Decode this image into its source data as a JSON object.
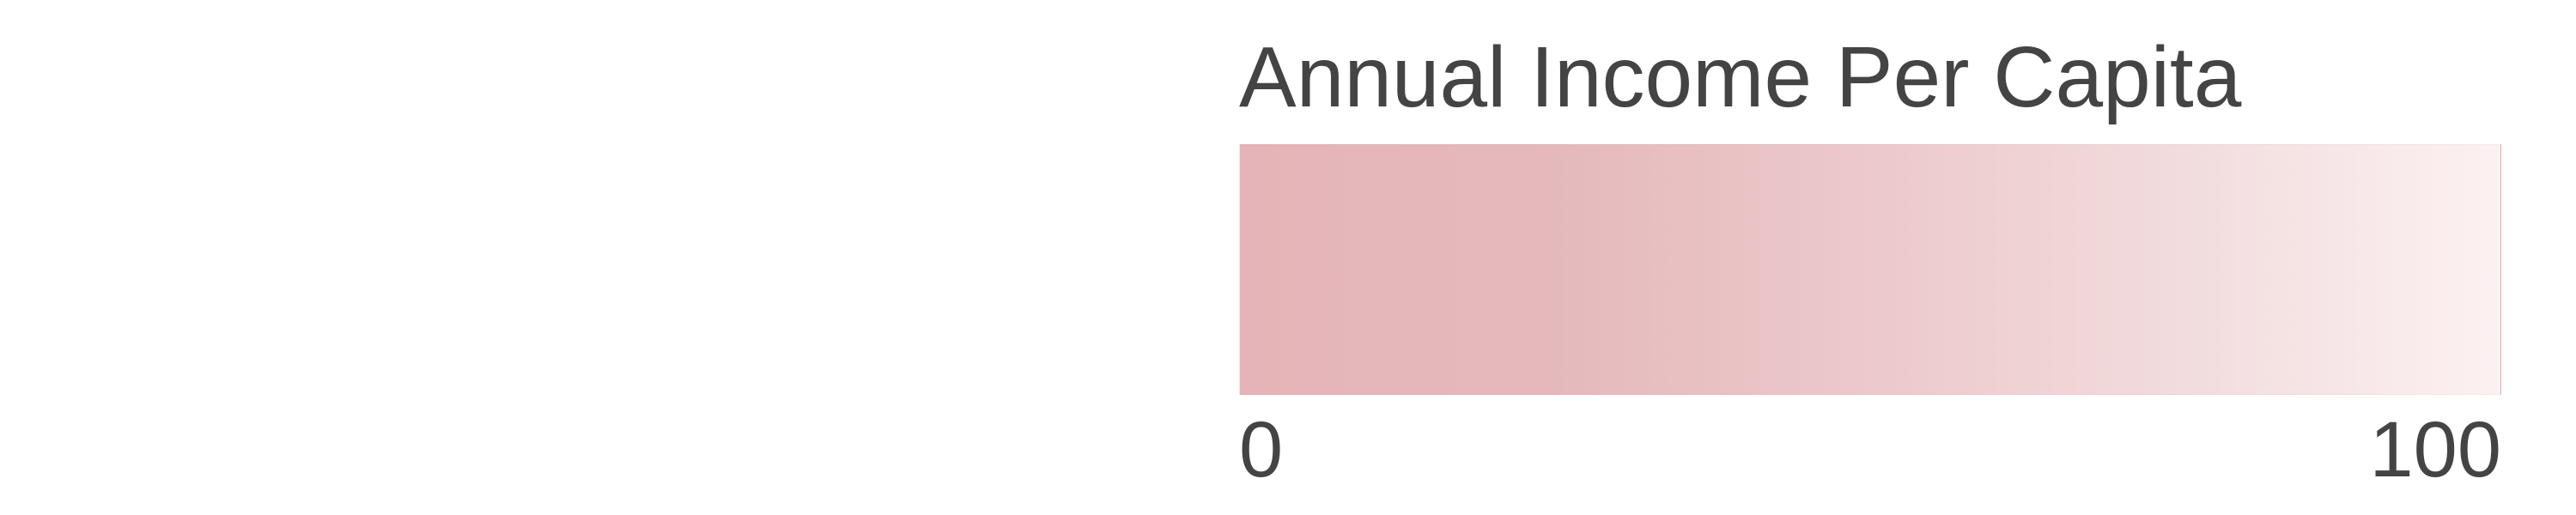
{
  "chart_data": {
    "type": "heatmap",
    "legend": {
      "title": "Annual Income Per Capita",
      "min": 0,
      "max": 100,
      "min_label": "0",
      "max_label": "100",
      "color_low": "#e5b4b8",
      "color_high": "#fcf1f2",
      "stops": [
        {
          "value": 0,
          "color": "#e5b4b8"
        },
        {
          "value": 25,
          "color": "#e5b9bc"
        },
        {
          "value": 50,
          "color": "#ecc9cb"
        },
        {
          "value": 75,
          "color": "#f2dcdd"
        },
        {
          "value": 100,
          "color": "#fcf1f2"
        }
      ]
    }
  }
}
